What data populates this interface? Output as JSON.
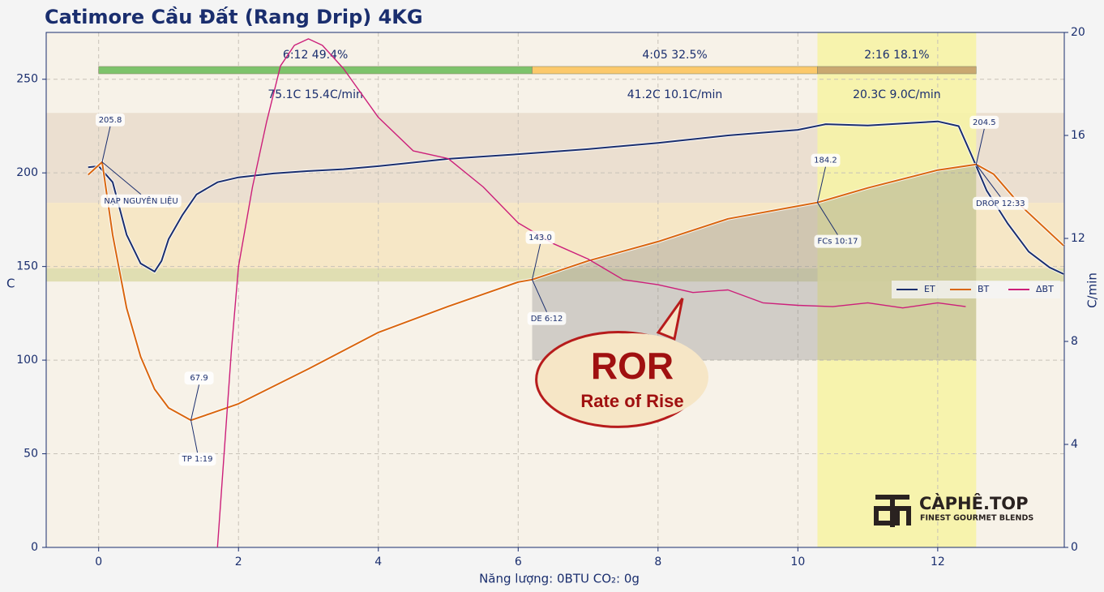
{
  "chart_data": {
    "type": "line",
    "title": "Catimore Cầu Đất (Rang Drip) 4KG",
    "ylabel": "C",
    "y2label": "C/min",
    "xlabel": "Năng lượng: 0BTU   CO₂: 0g",
    "xlim": [
      -0.75,
      13.81
    ],
    "ylim": [
      0,
      275
    ],
    "y2lim": [
      0,
      20
    ],
    "xticks": [
      0,
      2,
      4,
      6,
      8,
      10,
      12
    ],
    "yticks": [
      0,
      50,
      100,
      150,
      200,
      250
    ],
    "y2ticks": [
      0,
      4,
      8,
      12,
      16,
      20
    ],
    "grid": true,
    "legend": "center right",
    "y_bands": [
      {
        "from": 184,
        "to": 232,
        "color": "#e9dccb"
      },
      {
        "from": 142,
        "to": 184,
        "color": "#f6e5bf"
      },
      {
        "from": 142,
        "to": 149,
        "color": "#dcdcae"
      }
    ],
    "x_bands": [
      {
        "from": 10.28,
        "to": 12.55,
        "color": "#f6f3a6"
      }
    ],
    "auc_base": 100,
    "auc_range": [
      6.2,
      12.55
    ],
    "series": [
      {
        "name": "ET",
        "color": "#1a2e6e",
        "x": [
          -0.15,
          0,
          0.2,
          0.4,
          0.6,
          0.8,
          0.9,
          1.0,
          1.2,
          1.4,
          1.7,
          2.0,
          2.5,
          3.0,
          3.5,
          4,
          5,
          6,
          7,
          8,
          9,
          10,
          10.4,
          11,
          12,
          12.3,
          12.5,
          12.7,
          13,
          13.3,
          13.6,
          13.8
        ],
        "values": [
          203,
          203.6,
          195,
          167,
          151.6,
          147.3,
          153,
          164.6,
          177.6,
          188.5,
          195,
          197.6,
          199.7,
          201,
          202,
          203.6,
          207.5,
          210,
          212.7,
          216,
          220,
          223,
          226,
          225.3,
          227.5,
          225,
          208,
          190.6,
          173,
          158,
          149.5,
          146
        ]
      },
      {
        "name": "BT",
        "color": "#d9660f",
        "x": [
          -0.15,
          0.05,
          0.2,
          0.4,
          0.6,
          0.8,
          1.0,
          1.32,
          1.6,
          2.0,
          3,
          4,
          5,
          6,
          6.2,
          7,
          8,
          9,
          10.28,
          11,
          12,
          12.55,
          12.8,
          13.2,
          13.8
        ],
        "values": [
          199,
          205.8,
          166.8,
          127.8,
          101.8,
          84.5,
          74.5,
          67.9,
          71.5,
          76.7,
          95.3,
          114.8,
          128.7,
          141.7,
          143.0,
          153,
          163.3,
          175.5,
          184.2,
          192,
          201.5,
          204.5,
          199.3,
          182,
          161.2
        ]
      },
      {
        "name": "ΔBT",
        "color": "#cc1f7a",
        "axis": "y2",
        "x": [
          1.7,
          1.9,
          2.0,
          2.2,
          2.4,
          2.6,
          2.8,
          3.0,
          3.2,
          3.5,
          4,
          4.5,
          5,
          5.5,
          6,
          6.5,
          7,
          7.5,
          8,
          8.5,
          9,
          9.5,
          10,
          10.5,
          11,
          11.5,
          12,
          12.4
        ],
        "values": [
          0,
          7.7,
          10.9,
          14,
          16.5,
          18.7,
          19.5,
          19.75,
          19.5,
          18.6,
          16.7,
          15.4,
          15.1,
          14.0,
          12.6,
          11.8,
          11.2,
          10.4,
          10.2,
          9.9,
          10.0,
          9.5,
          9.4,
          9.35,
          9.5,
          9.3,
          9.5,
          9.35
        ]
      }
    ],
    "phases": [
      {
        "start": 0,
        "end": 6.2,
        "color": "#7dc36b",
        "label_top": "6:12  49.4%",
        "label_bottom": "75.1C  15.4C/min"
      },
      {
        "start": 6.2,
        "end": 10.28,
        "color": "#fcc96b",
        "label_top": "4:05  32.5%",
        "label_bottom": "41.2C  10.1C/min"
      },
      {
        "start": 10.28,
        "end": 12.55,
        "color": "#c9a870",
        "label_top": "2:16  18.1%",
        "label_bottom": "20.3C  9.0C/min"
      }
    ],
    "annotations": [
      {
        "x": 0.05,
        "value": 205.8,
        "value_label": "205.8",
        "label": "NẠP NGUYÊN LIỆU"
      },
      {
        "x": 1.32,
        "value": 67.9,
        "value_label": "67.9",
        "label": "TP 1:19"
      },
      {
        "x": 6.2,
        "value": 143.0,
        "value_label": "143.0",
        "label": "DE 6:12"
      },
      {
        "x": 10.28,
        "value": 184.2,
        "value_label": "184.2",
        "label": "FCs 10:17"
      },
      {
        "x": 12.55,
        "value": 204.5,
        "value_label": "204.5",
        "label": "DROP 12:33"
      }
    ],
    "callout": {
      "title": "ROR",
      "subtitle": "Rate of Rise"
    },
    "logo": {
      "name": "CÀPHÊ.TOP",
      "tagline": "FINEST GOURMET BLENDS"
    }
  }
}
